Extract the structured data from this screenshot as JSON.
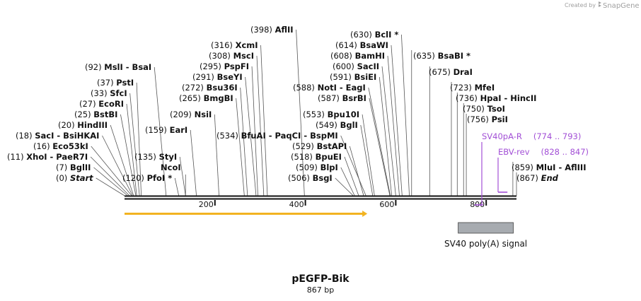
{
  "credit": {
    "text": "Created by",
    "brand": "SnapGene"
  },
  "plasmid": {
    "name": "pEGFP-Bik",
    "length_label": "867 bp"
  },
  "sites": [
    {
      "pos": "(0)",
      "name": "Start",
      "kind": "marker",
      "bp": 0
    },
    {
      "pos": "(7)",
      "name": "BglII",
      "kind": "enzyme",
      "bp": 7
    },
    {
      "pos": "(11)",
      "name": "XhoI  -  PaeR7I",
      "kind": "enzyme",
      "bp": 11
    },
    {
      "pos": "(16)",
      "name": "Eco53kI",
      "kind": "enzyme",
      "bp": 16
    },
    {
      "pos": "(18)",
      "name": "SacI  -  BsiHKAI",
      "kind": "enzyme",
      "bp": 18
    },
    {
      "pos": "(20)",
      "name": "HindIII",
      "kind": "enzyme",
      "bp": 20
    },
    {
      "pos": "(25)",
      "name": "BstBI",
      "kind": "enzyme",
      "bp": 25
    },
    {
      "pos": "(27)",
      "name": "EcoRI",
      "kind": "enzyme",
      "bp": 27
    },
    {
      "pos": "(33)",
      "name": "SfcI",
      "kind": "enzyme",
      "bp": 33
    },
    {
      "pos": "(37)",
      "name": "PstI",
      "kind": "enzyme",
      "bp": 37
    },
    {
      "pos": "(92)",
      "name": "MslI  -  BsaI",
      "kind": "enzyme",
      "bp": 92
    },
    {
      "pos": "(120)",
      "name": "PfoI *",
      "kind": "enzyme",
      "bp": 120
    },
    {
      "pos": "(135)",
      "name": "StyI",
      "kind": "enzyme",
      "bp": 135
    },
    {
      "pos": "",
      "name": "NcoI",
      "kind": "enzyme",
      "bp": 135
    },
    {
      "pos": "(159)",
      "name": "EarI",
      "kind": "enzyme",
      "bp": 159
    },
    {
      "pos": "(209)",
      "name": "NsiI",
      "kind": "enzyme",
      "bp": 209
    },
    {
      "pos": "(265)",
      "name": "BmgBI",
      "kind": "enzyme",
      "bp": 265
    },
    {
      "pos": "(272)",
      "name": "Bsu36I",
      "kind": "enzyme",
      "bp": 272
    },
    {
      "pos": "(291)",
      "name": "BseYI",
      "kind": "enzyme",
      "bp": 291
    },
    {
      "pos": "(295)",
      "name": "PspFI",
      "kind": "enzyme",
      "bp": 295
    },
    {
      "pos": "(308)",
      "name": "MscI",
      "kind": "enzyme",
      "bp": 308
    },
    {
      "pos": "(316)",
      "name": "XcmI",
      "kind": "enzyme",
      "bp": 316
    },
    {
      "pos": "(398)",
      "name": "AflII",
      "kind": "enzyme",
      "bp": 398
    },
    {
      "pos": "(534)",
      "name": "BfuAI  -  PaqCI  -  BspMI",
      "kind": "enzyme",
      "bp": 534
    },
    {
      "pos": "(506)",
      "name": "BsgI",
      "kind": "enzyme",
      "bp": 506
    },
    {
      "pos": "(509)",
      "name": "BlpI",
      "kind": "enzyme",
      "bp": 509
    },
    {
      "pos": "(518)",
      "name": "BpuEI",
      "kind": "enzyme",
      "bp": 518
    },
    {
      "pos": "(529)",
      "name": "BstAPI",
      "kind": "enzyme",
      "bp": 529
    },
    {
      "pos": "(549)",
      "name": "BglI",
      "kind": "enzyme",
      "bp": 549
    },
    {
      "pos": "(553)",
      "name": "Bpu10I",
      "kind": "enzyme",
      "bp": 553
    },
    {
      "pos": "(587)",
      "name": "BsrBI",
      "kind": "enzyme",
      "bp": 587
    },
    {
      "pos": "(588)",
      "name": "NotI  -  EagI",
      "kind": "enzyme",
      "bp": 588
    },
    {
      "pos": "(591)",
      "name": "BsiEI",
      "kind": "enzyme",
      "bp": 591
    },
    {
      "pos": "(600)",
      "name": "SacII",
      "kind": "enzyme",
      "bp": 600
    },
    {
      "pos": "(608)",
      "name": "BamHI",
      "kind": "enzyme",
      "bp": 608
    },
    {
      "pos": "(614)",
      "name": "BsaWI",
      "kind": "enzyme",
      "bp": 614
    },
    {
      "pos": "(630)",
      "name": "BclI *",
      "kind": "enzyme",
      "bp": 630
    },
    {
      "pos": "(635)",
      "name": "BsaBI *",
      "kind": "enzyme",
      "bp": 635
    },
    {
      "pos": "(675)",
      "name": "DraI",
      "kind": "enzyme",
      "bp": 675
    },
    {
      "pos": "(723)",
      "name": "MfeI",
      "kind": "enzyme",
      "bp": 723
    },
    {
      "pos": "(736)",
      "name": "HpaI  -  HincII",
      "kind": "enzyme",
      "bp": 736
    },
    {
      "pos": "(750)",
      "name": "TsoI",
      "kind": "enzyme",
      "bp": 750
    },
    {
      "pos": "(756)",
      "name": "PsiI",
      "kind": "enzyme",
      "bp": 756
    },
    {
      "pos": "(859)",
      "name": "MluI  -  AflIII",
      "kind": "enzyme",
      "bp": 859
    },
    {
      "pos": "(867)",
      "name": "End",
      "kind": "marker",
      "bp": 867
    }
  ],
  "ticks": [
    {
      "label": "200",
      "bp": 200
    },
    {
      "label": "400",
      "bp": 400
    },
    {
      "label": "600",
      "bp": 600
    },
    {
      "label": "800",
      "bp": 800
    }
  ],
  "primers": [
    {
      "name": "SV40pA-R",
      "range": "(774 .. 793)",
      "start": 774,
      "end": 793,
      "strand": "reverse"
    },
    {
      "name": "EBV-rev",
      "range": "(828 .. 847)",
      "start": 828,
      "end": 847,
      "strand": "reverse"
    }
  ],
  "features": [
    {
      "name": "SV40 poly(A) signal",
      "start": 738,
      "end": 860,
      "color": "#a7abb0"
    }
  ],
  "orf": {
    "start": 0,
    "end": 537,
    "color": "#f2b321"
  }
}
